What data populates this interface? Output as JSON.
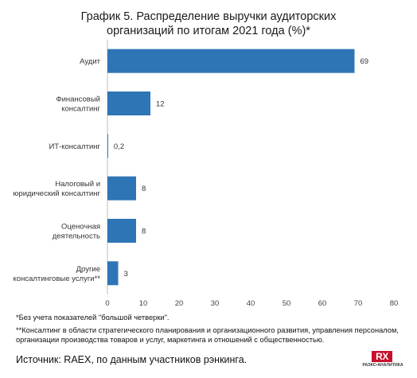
{
  "chart_data": {
    "type": "bar",
    "orientation": "horizontal",
    "title_lines": [
      "График 5. Распределение выручки аудиторских",
      "организаций по итогам 2021 года (%)*"
    ],
    "categories": [
      [
        "Аудит"
      ],
      [
        "Финансовый",
        "консалтинг"
      ],
      [
        "ИТ-консалтинг"
      ],
      [
        "Налоговый и",
        "юридический консалтинг"
      ],
      [
        "Оценочная",
        "деятельность"
      ],
      [
        "Другие",
        "консалтинговые услуги**"
      ]
    ],
    "values": [
      69,
      12,
      0.2,
      8,
      8,
      3
    ],
    "data_labels": [
      "69",
      "12",
      "0,2",
      "8",
      "8",
      "3"
    ],
    "xlim": [
      0,
      80
    ],
    "xticks": [
      0,
      10,
      20,
      30,
      40,
      50,
      60,
      70,
      80
    ],
    "grid": false,
    "bar_color": "#2e75b6"
  },
  "footnotes": [
    "*Без учета показателей \"большой четверки\".",
    "**Консалтинг в области стратегического планирования и организационного развития, управления персоналом, организации производства товаров и услуг, маркетинга и отношений с общественностью."
  ],
  "source": "Источник: RAEX, по данным участников рэнкинга.",
  "logo": {
    "mark": "RX",
    "brand": "РАЭКС•АНАЛИТИКА",
    "color": "#c8102e"
  }
}
